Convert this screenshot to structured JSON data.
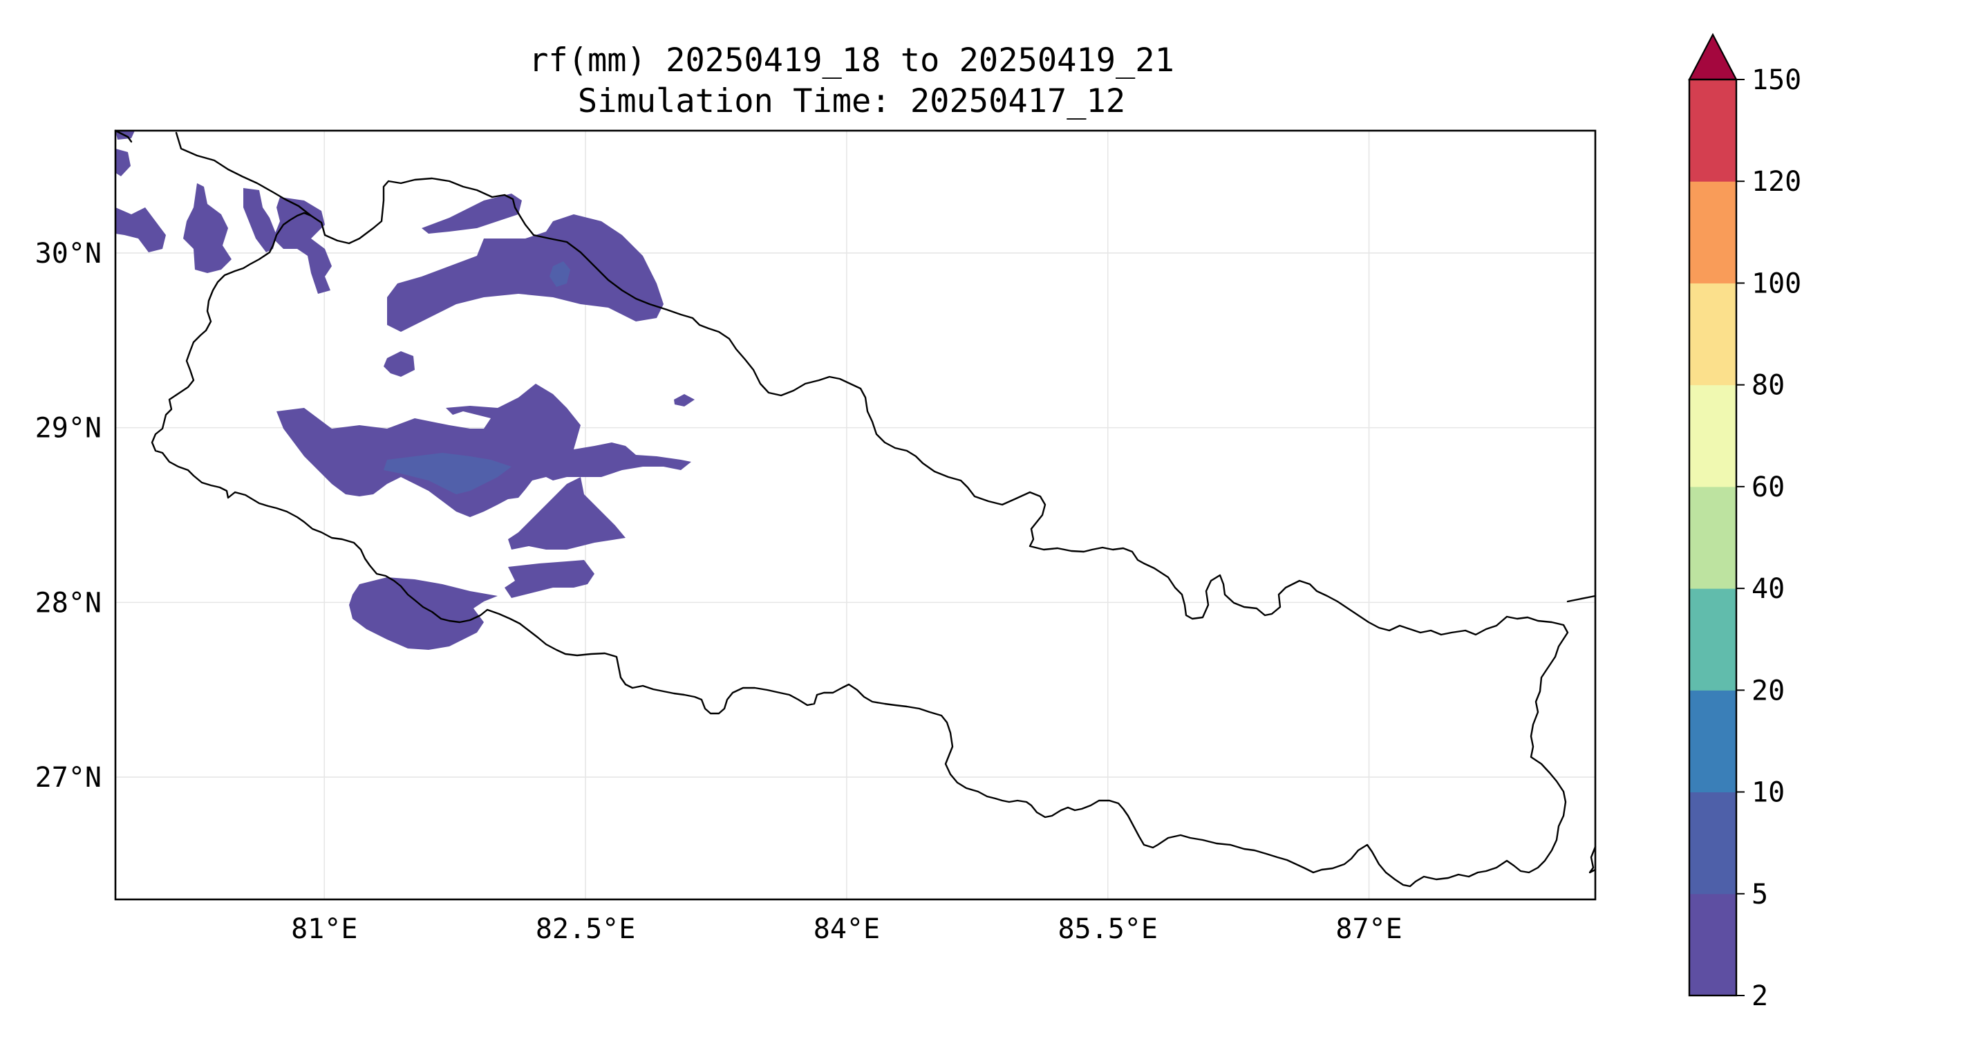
{
  "title": {
    "line1": "rf(mm) 20250419_18 to 20250419_21",
    "line2": "Simulation Time: 20250417_12"
  },
  "map": {
    "lon_range": [
      79.8,
      88.3
    ],
    "lat_range": [
      26.3,
      30.7
    ],
    "grid": true,
    "lon_ticks": [
      {
        "value": 81,
        "label": "81°E"
      },
      {
        "value": 82.5,
        "label": "82.5°E"
      },
      {
        "value": 84,
        "label": "84°E"
      },
      {
        "value": 85.5,
        "label": "85.5°E"
      },
      {
        "value": 87,
        "label": "87°E"
      }
    ],
    "lat_ticks": [
      {
        "value": 30,
        "label": "30°N"
      },
      {
        "value": 29,
        "label": "29°N"
      },
      {
        "value": 28,
        "label": "28°N"
      },
      {
        "value": 27,
        "label": "27°N"
      }
    ],
    "rain_color": "#5e4fa2",
    "rain_color_inner": "#5160aa"
  },
  "colorbar": {
    "extend": "max",
    "levels": [
      "2",
      "5",
      "10",
      "20",
      "40",
      "60",
      "80",
      "100",
      "120",
      "150"
    ],
    "colors": [
      "#5e4fa2",
      "#4e60a9",
      "#3a7fb8",
      "#61bcac",
      "#bde3a0",
      "#f0f9b1",
      "#fbe08c",
      "#f99c59",
      "#d43f50"
    ],
    "extend_color": "#a4073e"
  }
}
